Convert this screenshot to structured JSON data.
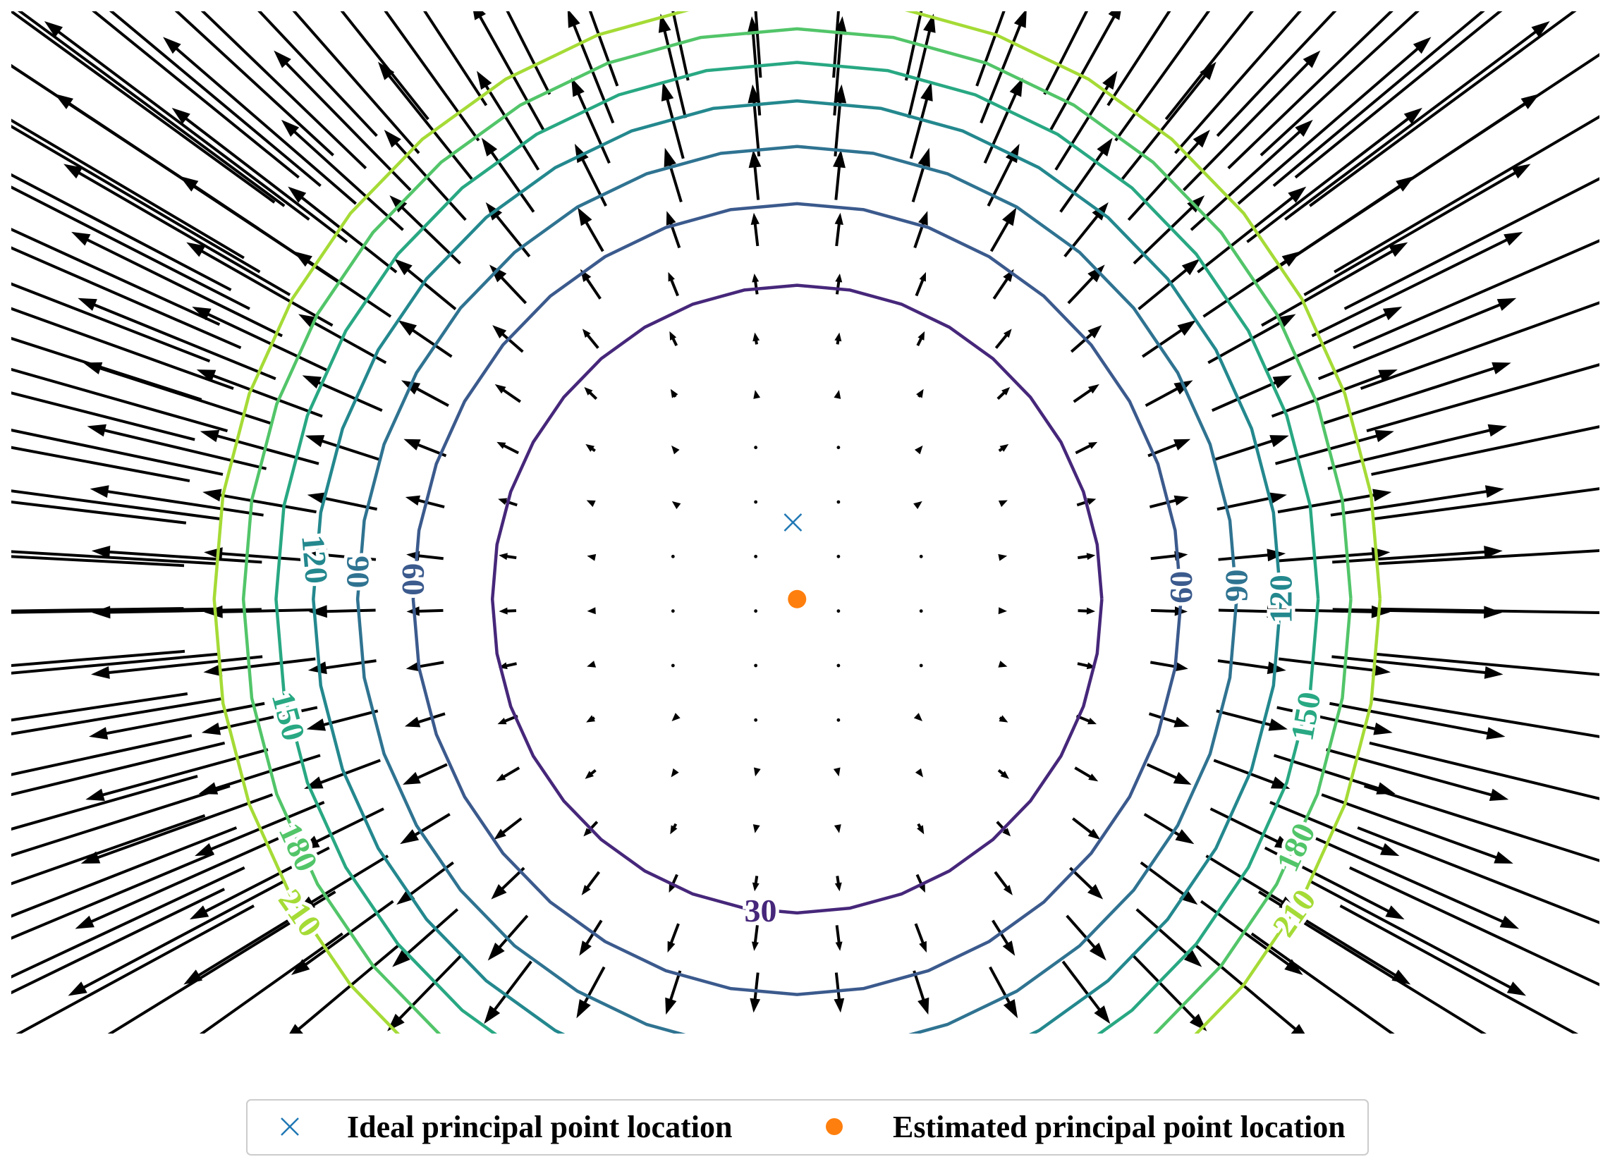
{
  "chart_data": {
    "type": "contour",
    "description_fields": "vector field of distortion arrows with contour lines of distortion magnitude",
    "xlim": [
      0,
      1920
    ],
    "ylim": [
      0,
      1200
    ],
    "grid": false,
    "contour_levels": [
      30,
      60,
      90,
      120,
      150,
      180,
      210
    ],
    "contour_colors": {
      "30": "#46277a",
      "60": "#3b5a8d",
      "90": "#2f7391",
      "120": "#23888e",
      "150": "#28a883",
      "180": "#52c569",
      "210": "#a5db36"
    },
    "contour_labels": [
      "30",
      "60",
      "90",
      "60",
      "90",
      "120",
      "150",
      "180",
      "210",
      "120",
      "150",
      "180",
      "210"
    ],
    "ideal_principal_point": {
      "x": 945,
      "y": 600
    },
    "estimated_principal_point": {
      "x": 950,
      "y": 690
    },
    "vector_field": {
      "center": {
        "x": 950,
        "y": 690
      },
      "k": 6e-07,
      "cols": 19,
      "rows": 19,
      "x_start": 0,
      "x_step": 100,
      "y_start": 0,
      "y_step": 64
    },
    "legend": {
      "placement": "bottom-center",
      "entries": [
        {
          "label": "Ideal principal point location",
          "marker": "x",
          "color": "#1f77b4"
        },
        {
          "label": "Estimated principal point location",
          "marker": "o",
          "color": "#ff7f0e"
        }
      ]
    }
  }
}
